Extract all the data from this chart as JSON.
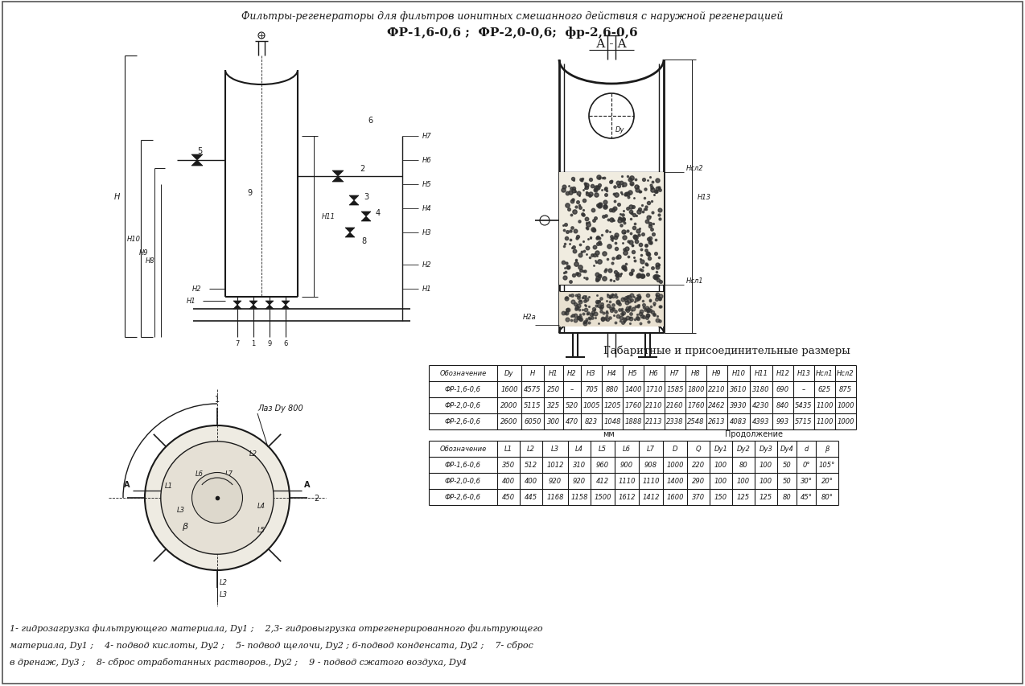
{
  "title_italic": "Фильтры-регенераторы для фильтров ионитных смешанного действия с наружной регенерацией",
  "subtitle": "ФР-1,6-0,6 ;  ФР-2,0-0,6;  фр-2,6-0,6",
  "section_label": "А - А",
  "table1_title": "Габаритные и присоединительные размеры",
  "table1_header": [
    "Обозначение",
    "Dy",
    "H",
    "H1",
    "H2",
    "H3",
    "H4",
    "H5",
    "H6",
    "H7",
    "H8",
    "H9",
    "H10",
    "H11",
    "H12",
    "H13",
    "Hсл1",
    "Hсл2"
  ],
  "table1_rows": [
    [
      "ФР-1,6-0,6",
      "1600",
      "4575",
      "250",
      "–",
      "705",
      "880",
      "1400",
      "1710",
      "1585",
      "1800",
      "2210",
      "3610",
      "3180",
      "690",
      "–",
      "625",
      "875"
    ],
    [
      "ФР-2,0-0,6",
      "2000",
      "5115",
      "325",
      "520",
      "1005",
      "1205",
      "1760",
      "2110",
      "2160",
      "1760",
      "2462",
      "3930",
      "4230",
      "840",
      "5435",
      "1100",
      "1000"
    ],
    [
      "ФР-2,6-0,6",
      "2600",
      "6050",
      "300",
      "470",
      "823",
      "1048",
      "1888",
      "2113",
      "2338",
      "2548",
      "2613",
      "4083",
      "4393",
      "993",
      "5715",
      "1100",
      "1000"
    ]
  ],
  "table2_note_mm": "мм",
  "table2_note_cont": "Продолжение",
  "table2_header": [
    "Обозначение",
    "L1",
    "L2",
    "L3",
    "L4",
    "L5",
    "L6",
    "L7",
    "D",
    "Q",
    "Dy1",
    "Dy2",
    "Dy3",
    "Dy4",
    "d",
    "β"
  ],
  "table2_rows": [
    [
      "ФР-1,6-0,6",
      "350",
      "512",
      "1012",
      "310",
      "960",
      "900",
      "908",
      "1000",
      "220",
      "100",
      "80",
      "100",
      "50",
      "0°",
      "105°"
    ],
    [
      "ФР-2,0-0,6",
      "400",
      "400",
      "920",
      "920",
      "412",
      "1110",
      "1110",
      "1400",
      "290",
      "100",
      "100",
      "100",
      "50",
      "30°",
      "20°"
    ],
    [
      "ФР-2,6-0,6",
      "450",
      "445",
      "1168",
      "1158",
      "1500",
      "1612",
      "1412",
      "1600",
      "370",
      "150",
      "125",
      "125",
      "80",
      "45°",
      "80°"
    ]
  ],
  "footnote_lines": [
    "1- гидрозагрузка фильтрующего материала, Dy1 ;    2,3- гидровыгрузка отрегенерированного фильтрующего",
    "материала, Dy1 ;    4- подвод кислоты, Dy2 ;    5- подвод щелочи, Dy2 ; 6-подвод конденсата, Dy2 ;    7- сброс",
    "в дренаж, Dy3 ;    8- сброс отработанных растворов., Dy2 ;    9 - подвод сжатого воздуха, Dy4"
  ],
  "bg_color": "#ffffff",
  "line_color": "#1a1a1a",
  "text_color": "#1a1a1a"
}
